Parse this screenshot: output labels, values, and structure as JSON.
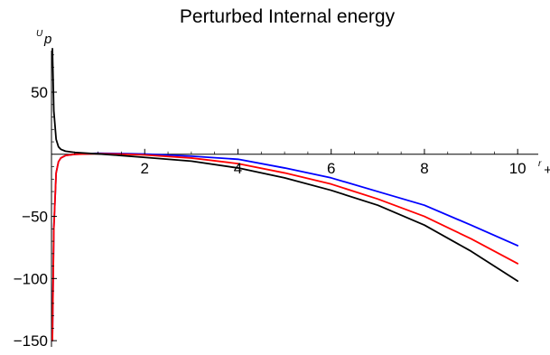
{
  "chart_data": {
    "type": "line",
    "title": "Perturbed Internal energy",
    "xlabel": {
      "main": "r",
      "sub": "+"
    },
    "ylabel": {
      "main": "p",
      "sub": "U"
    },
    "xlim": [
      0,
      10.5
    ],
    "ylim": [
      -155,
      90
    ],
    "x_ticks": [
      2,
      4,
      6,
      8,
      10
    ],
    "y_ticks": [
      50,
      -50,
      -100,
      -150
    ],
    "grid": false,
    "series": [
      {
        "color": "#0000ff",
        "points": [
          [
            0.02,
            -150
          ],
          [
            0.05,
            -60
          ],
          [
            0.1,
            -15
          ],
          [
            0.15,
            -6
          ],
          [
            0.2,
            -3
          ],
          [
            0.3,
            -1
          ],
          [
            0.5,
            0
          ],
          [
            1.0,
            0.8
          ],
          [
            1.5,
            0.6
          ],
          [
            2.0,
            0.2
          ],
          [
            3.0,
            -1.5
          ],
          [
            4.0,
            -4
          ],
          [
            5.0,
            -11
          ],
          [
            6.0,
            -19
          ],
          [
            7.0,
            -30
          ],
          [
            8.0,
            -41
          ],
          [
            9.0,
            -57
          ],
          [
            10.0,
            -73.5
          ]
        ]
      },
      {
        "color": "#ff0000",
        "points": [
          [
            0.02,
            -150
          ],
          [
            0.05,
            -60
          ],
          [
            0.1,
            -15
          ],
          [
            0.15,
            -6
          ],
          [
            0.2,
            -3
          ],
          [
            0.3,
            -1
          ],
          [
            0.5,
            0
          ],
          [
            1.0,
            0.5
          ],
          [
            1.5,
            0.1
          ],
          [
            2.0,
            -0.5
          ],
          [
            3.0,
            -3
          ],
          [
            4.0,
            -7.5
          ],
          [
            5.0,
            -15
          ],
          [
            6.0,
            -24
          ],
          [
            7.0,
            -36
          ],
          [
            8.0,
            -50
          ],
          [
            9.0,
            -68
          ],
          [
            10.0,
            -88
          ]
        ]
      },
      {
        "color": "#000000",
        "points": [
          [
            0.02,
            85
          ],
          [
            0.05,
            35
          ],
          [
            0.1,
            12
          ],
          [
            0.15,
            6
          ],
          [
            0.2,
            4
          ],
          [
            0.3,
            2.5
          ],
          [
            0.5,
            1.5
          ],
          [
            1.0,
            0.3
          ],
          [
            1.5,
            -1
          ],
          [
            2.0,
            -2.5
          ],
          [
            3.0,
            -5.5
          ],
          [
            4.0,
            -11
          ],
          [
            5.0,
            -19
          ],
          [
            6.0,
            -29
          ],
          [
            7.0,
            -41
          ],
          [
            8.0,
            -57
          ],
          [
            9.0,
            -78
          ],
          [
            10.0,
            -102
          ]
        ]
      }
    ]
  }
}
